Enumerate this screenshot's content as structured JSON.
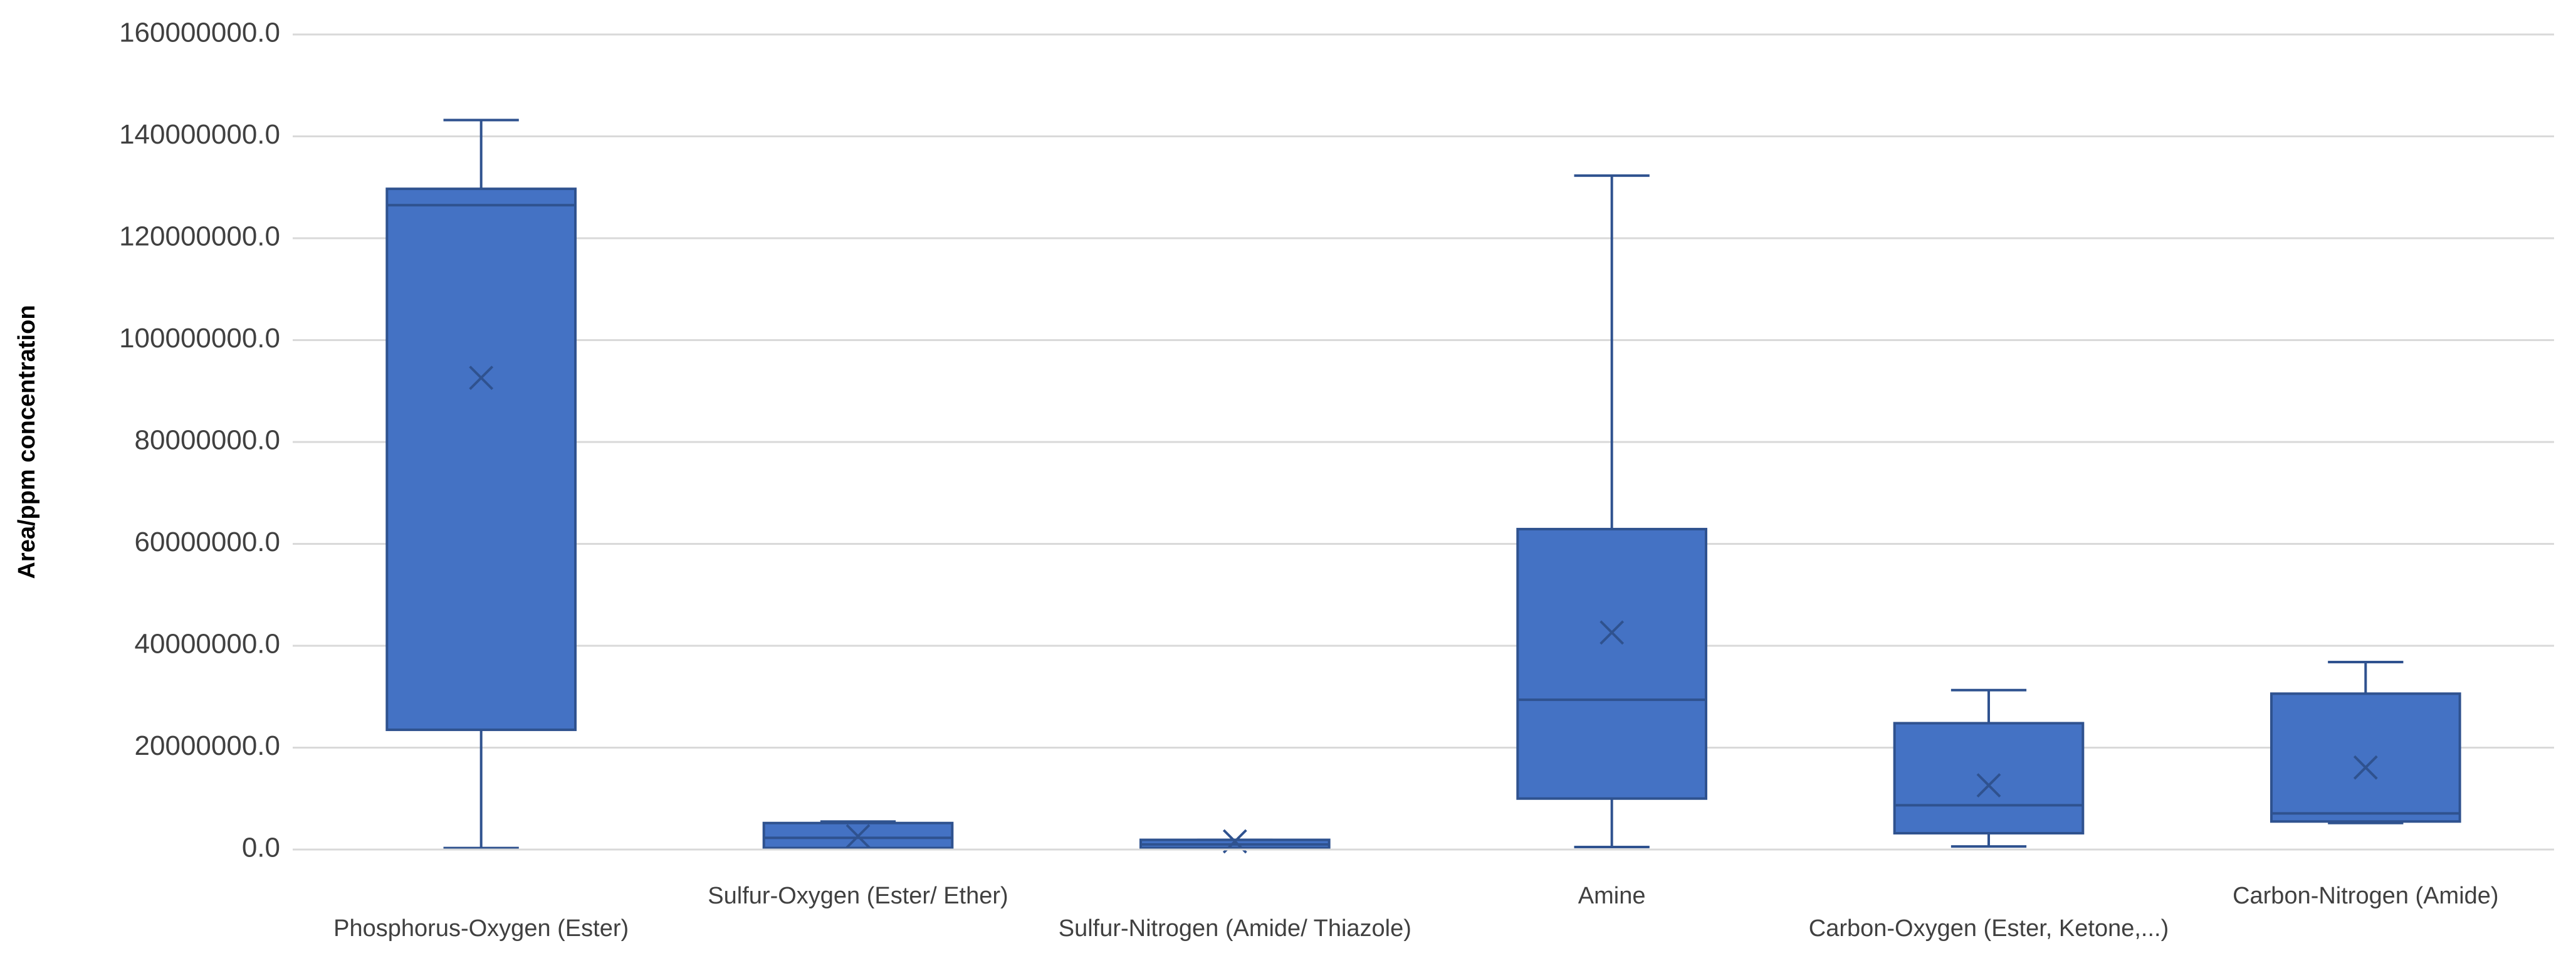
{
  "chart_data": {
    "type": "box",
    "y_label": "Area/ppm concentration",
    "categories": [
      "Phosphorus-Oxygen (Ester)",
      "Sulfur-Oxygen (Ester/ Ether)",
      "Sulfur-Nitrogen (Amide/ Thiazole)",
      "Amine",
      "Carbon-Oxygen (Ester, Ketone,...)",
      "Carbon-Nitrogen (Amide)"
    ],
    "min": [
      300000,
      100000,
      100000,
      500000,
      600000,
      5200000
    ],
    "q1": [
      23500000,
      300000,
      300000,
      10000000,
      3200000,
      5500000
    ],
    "median": [
      126500000,
      2300000,
      1000000,
      29400000,
      8700000,
      7100000
    ],
    "q3": [
      129700000,
      5200000,
      1900000,
      62900000,
      24800000,
      30600000
    ],
    "max": [
      143200000,
      5500000,
      1900000,
      132300000,
      31300000,
      36800000
    ],
    "mean": [
      92600000,
      2600000,
      1600000,
      42600000,
      12600000,
      16100000
    ],
    "color": "#4472c4",
    "edge_color": "#2f528f",
    "ylim": [
      0,
      160000000
    ],
    "yticks": [
      {
        "value": 0,
        "label": "0.0"
      },
      {
        "value": 20000000,
        "label": "20000000.0"
      },
      {
        "value": 40000000,
        "label": "40000000.0"
      },
      {
        "value": 60000000,
        "label": "60000000.0"
      },
      {
        "value": 80000000,
        "label": "80000000.0"
      },
      {
        "value": 100000000,
        "label": "100000000.0"
      },
      {
        "value": 120000000,
        "label": "120000000.0"
      },
      {
        "value": 140000000,
        "label": "140000000.0"
      },
      {
        "value": 160000000,
        "label": "160000000.0"
      }
    ],
    "grid": true
  }
}
